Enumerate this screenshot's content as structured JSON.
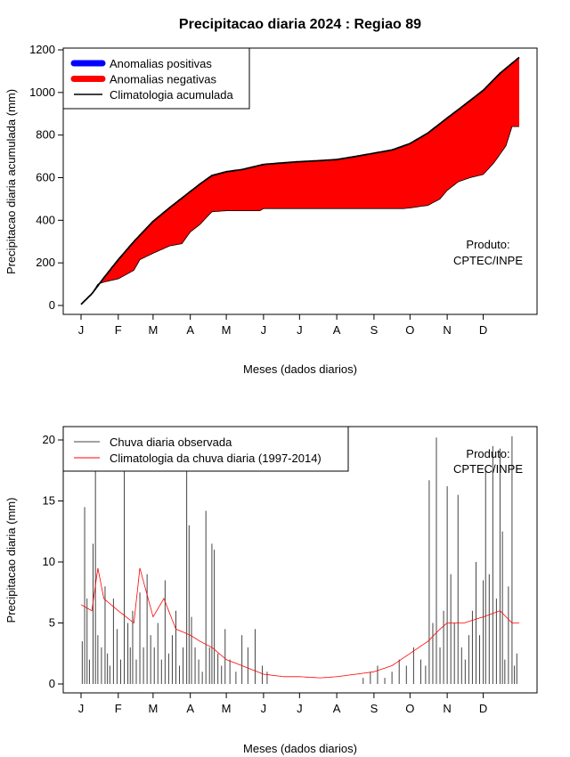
{
  "title": "Precipitacao diaria 2024 : Regiao 89",
  "product_label": [
    "Produto:",
    "CPTEC/INPE"
  ],
  "chart_data": [
    {
      "type": "area",
      "ylabel": "Precipitacao diaria acumulada (mm)",
      "xlabel": "Meses (dados diarios)",
      "xticks": [
        "J",
        "F",
        "M",
        "A",
        "M",
        "J",
        "J",
        "A",
        "S",
        "O",
        "N",
        "D"
      ],
      "xtick_days": [
        1,
        32,
        61,
        92,
        122,
        153,
        183,
        214,
        245,
        275,
        306,
        336
      ],
      "ylim": [
        0,
        1200
      ],
      "yticks": [
        0,
        200,
        400,
        600,
        800,
        1000,
        1200
      ],
      "legend_position": "top-left",
      "legend": [
        {
          "label": "Anomalias positivas",
          "color": "#0000ff",
          "kind": "thick"
        },
        {
          "label": "Anomalias negativas",
          "color": "#ff0000",
          "kind": "thick"
        },
        {
          "label": "Climatologia acumulada",
          "color": "#000000",
          "kind": "line"
        }
      ],
      "series": [
        {
          "name": "Climatologia acumulada",
          "x": [
            1,
            10,
            20,
            32,
            45,
            61,
            75,
            92,
            100,
            110,
            122,
            135,
            153,
            170,
            183,
            200,
            214,
            230,
            245,
            260,
            275,
            290,
            306,
            320,
            336,
            350,
            366
          ],
          "values": [
            5,
            55,
            130,
            215,
            300,
            395,
            460,
            535,
            570,
            610,
            628,
            638,
            662,
            670,
            675,
            680,
            685,
            700,
            715,
            730,
            760,
            810,
            880,
            940,
            1010,
            1090,
            1165
          ]
        },
        {
          "name": "Precipitacao acumulada observada",
          "x": [
            1,
            10,
            15,
            20,
            32,
            45,
            50,
            61,
            75,
            85,
            92,
            100,
            110,
            122,
            150,
            153,
            183,
            214,
            245,
            270,
            275,
            290,
            300,
            306,
            315,
            325,
            336,
            345,
            355,
            360,
            366
          ],
          "values": [
            5,
            55,
            100,
            110,
            125,
            165,
            215,
            245,
            280,
            290,
            345,
            380,
            440,
            445,
            445,
            455,
            455,
            455,
            455,
            455,
            458,
            470,
            500,
            540,
            580,
            600,
            615,
            670,
            750,
            840,
            840
          ]
        }
      ]
    },
    {
      "type": "bar",
      "ylabel": "Precipitacao diaria (mm)",
      "xlabel": "Meses (dados diarios)",
      "xticks": [
        "J",
        "F",
        "M",
        "A",
        "M",
        "J",
        "J",
        "A",
        "S",
        "O",
        "N",
        "D"
      ],
      "xtick_days": [
        1,
        32,
        61,
        92,
        122,
        153,
        183,
        214,
        245,
        275,
        306,
        336
      ],
      "ylim": [
        0,
        20
      ],
      "yticks": [
        0,
        5,
        10,
        15,
        20
      ],
      "legend_position": "top-left",
      "legend": [
        {
          "label": "Chuva diaria observada",
          "color": "#444444",
          "kind": "line"
        },
        {
          "label": "Climatologia da chuva diaria (1997-2014)",
          "color": "#ff0000",
          "kind": "line"
        }
      ],
      "series": [
        {
          "name": "Chuva diaria observada",
          "x": [
            2,
            4,
            6,
            8,
            11,
            13,
            15,
            18,
            21,
            23,
            25,
            28,
            31,
            34,
            37,
            40,
            42,
            44,
            47,
            50,
            53,
            56,
            59,
            62,
            65,
            68,
            71,
            74,
            77,
            80,
            83,
            86,
            89,
            91,
            93,
            96,
            99,
            102,
            105,
            108,
            110,
            112,
            115,
            118,
            121,
            125,
            130,
            135,
            140,
            146,
            152,
            156,
            236,
            242,
            248,
            254,
            260,
            266,
            272,
            278,
            284,
            288,
            291,
            294,
            297,
            300,
            303,
            306,
            309,
            312,
            315,
            318,
            321,
            324,
            327,
            330,
            333,
            336,
            338,
            341,
            344,
            347,
            350,
            352,
            354,
            357,
            360,
            362,
            364
          ],
          "values": [
            3.5,
            14.5,
            7,
            2,
            11.5,
            17.8,
            4,
            3,
            8,
            2.5,
            1.5,
            7,
            4.5,
            2,
            17.5,
            5,
            3,
            6,
            2,
            7.5,
            3,
            9,
            4,
            3,
            5,
            2,
            8.5,
            2.5,
            4,
            6,
            1.5,
            3,
            17.5,
            13,
            5.5,
            3,
            2,
            1,
            14.2,
            3,
            11.5,
            11,
            2.5,
            1.5,
            4.5,
            2,
            1,
            4,
            3,
            4.5,
            1.5,
            1,
            0.5,
            1,
            1.5,
            0.5,
            1,
            2,
            1.5,
            3,
            2,
            1.5,
            16.7,
            5,
            20.2,
            3,
            6,
            16.2,
            9,
            5,
            15.5,
            3,
            2,
            4,
            6,
            10,
            4,
            8.5,
            17.5,
            9,
            19.5,
            7,
            19.3,
            12.5,
            2,
            8,
            20.3,
            1.5,
            2.5
          ]
        },
        {
          "name": "Climatologia da chuva diaria (1997-2014)",
          "x": [
            1,
            10,
            15,
            20,
            32,
            45,
            50,
            61,
            70,
            80,
            92,
            100,
            110,
            122,
            135,
            153,
            170,
            183,
            200,
            214,
            230,
            245,
            260,
            275,
            290,
            300,
            306,
            320,
            336,
            350,
            360,
            366
          ],
          "values": [
            6.5,
            6,
            9.5,
            7,
            6,
            5,
            9.5,
            5.5,
            7,
            4.5,
            4,
            3.5,
            3,
            2,
            1.5,
            0.8,
            0.6,
            0.6,
            0.5,
            0.6,
            0.8,
            1,
            1.5,
            2.5,
            3.5,
            4.5,
            5,
            5,
            5.5,
            6,
            5,
            5
          ]
        }
      ]
    }
  ]
}
